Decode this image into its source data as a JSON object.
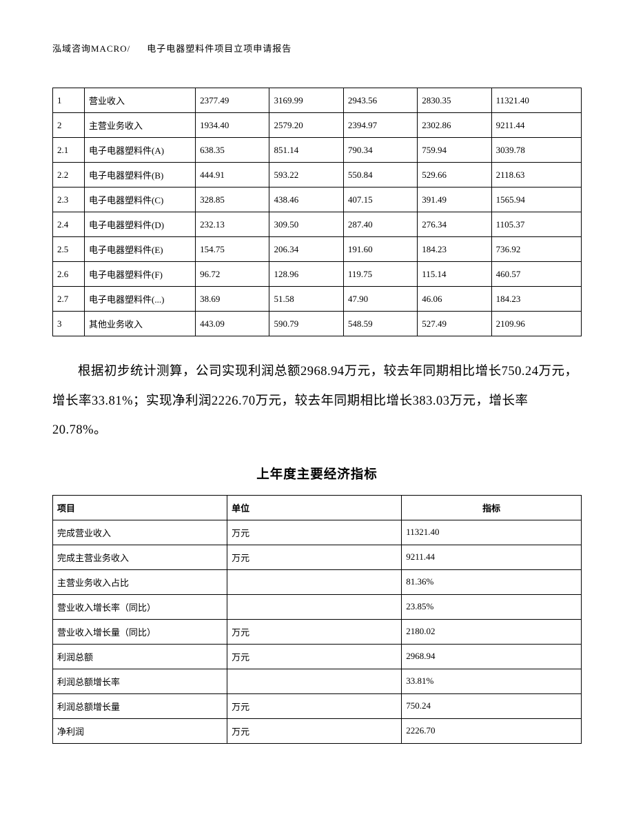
{
  "header": {
    "left": "泓域咨询MACRO/",
    "right": "电子电器塑料件项目立项申请报告"
  },
  "table1": {
    "rows": [
      [
        "1",
        "营业收入",
        "2377.49",
        "3169.99",
        "2943.56",
        "2830.35",
        "11321.40"
      ],
      [
        "2",
        "主营业务收入",
        "1934.40",
        "2579.20",
        "2394.97",
        "2302.86",
        "9211.44"
      ],
      [
        "2.1",
        "电子电器塑料件(A)",
        "638.35",
        "851.14",
        "790.34",
        "759.94",
        "3039.78"
      ],
      [
        "2.2",
        "电子电器塑料件(B)",
        "444.91",
        "593.22",
        "550.84",
        "529.66",
        "2118.63"
      ],
      [
        "2.3",
        "电子电器塑料件(C)",
        "328.85",
        "438.46",
        "407.15",
        "391.49",
        "1565.94"
      ],
      [
        "2.4",
        "电子电器塑料件(D)",
        "232.13",
        "309.50",
        "287.40",
        "276.34",
        "1105.37"
      ],
      [
        "2.5",
        "电子电器塑料件(E)",
        "154.75",
        "206.34",
        "191.60",
        "184.23",
        "736.92"
      ],
      [
        "2.6",
        "电子电器塑料件(F)",
        "96.72",
        "128.96",
        "119.75",
        "115.14",
        "460.57"
      ],
      [
        "2.7",
        "电子电器塑料件(...)",
        "38.69",
        "51.58",
        "47.90",
        "46.06",
        "184.23"
      ],
      [
        "3",
        "其他业务收入",
        "443.09",
        "590.79",
        "548.59",
        "527.49",
        "2109.96"
      ]
    ]
  },
  "paragraph": "根据初步统计测算，公司实现利润总额2968.94万元，较去年同期相比增长750.24万元，增长率33.81%；实现净利润2226.70万元，较去年同期相比增长383.03万元，增长率20.78%。",
  "section_title": "上年度主要经济指标",
  "table2": {
    "headers": [
      "项目",
      "单位",
      "指标"
    ],
    "rows": [
      [
        "完成营业收入",
        "万元",
        "11321.40"
      ],
      [
        "完成主营业务收入",
        "万元",
        "9211.44"
      ],
      [
        "主营业务收入占比",
        "",
        "81.36%"
      ],
      [
        "营业收入增长率（同比）",
        "",
        "23.85%"
      ],
      [
        "营业收入增长量（同比）",
        "万元",
        "2180.02"
      ],
      [
        "利润总额",
        "万元",
        "2968.94"
      ],
      [
        "利润总额增长率",
        "",
        "33.81%"
      ],
      [
        "利润总额增长量",
        "万元",
        "750.24"
      ],
      [
        "净利润",
        "万元",
        "2226.70"
      ]
    ]
  }
}
